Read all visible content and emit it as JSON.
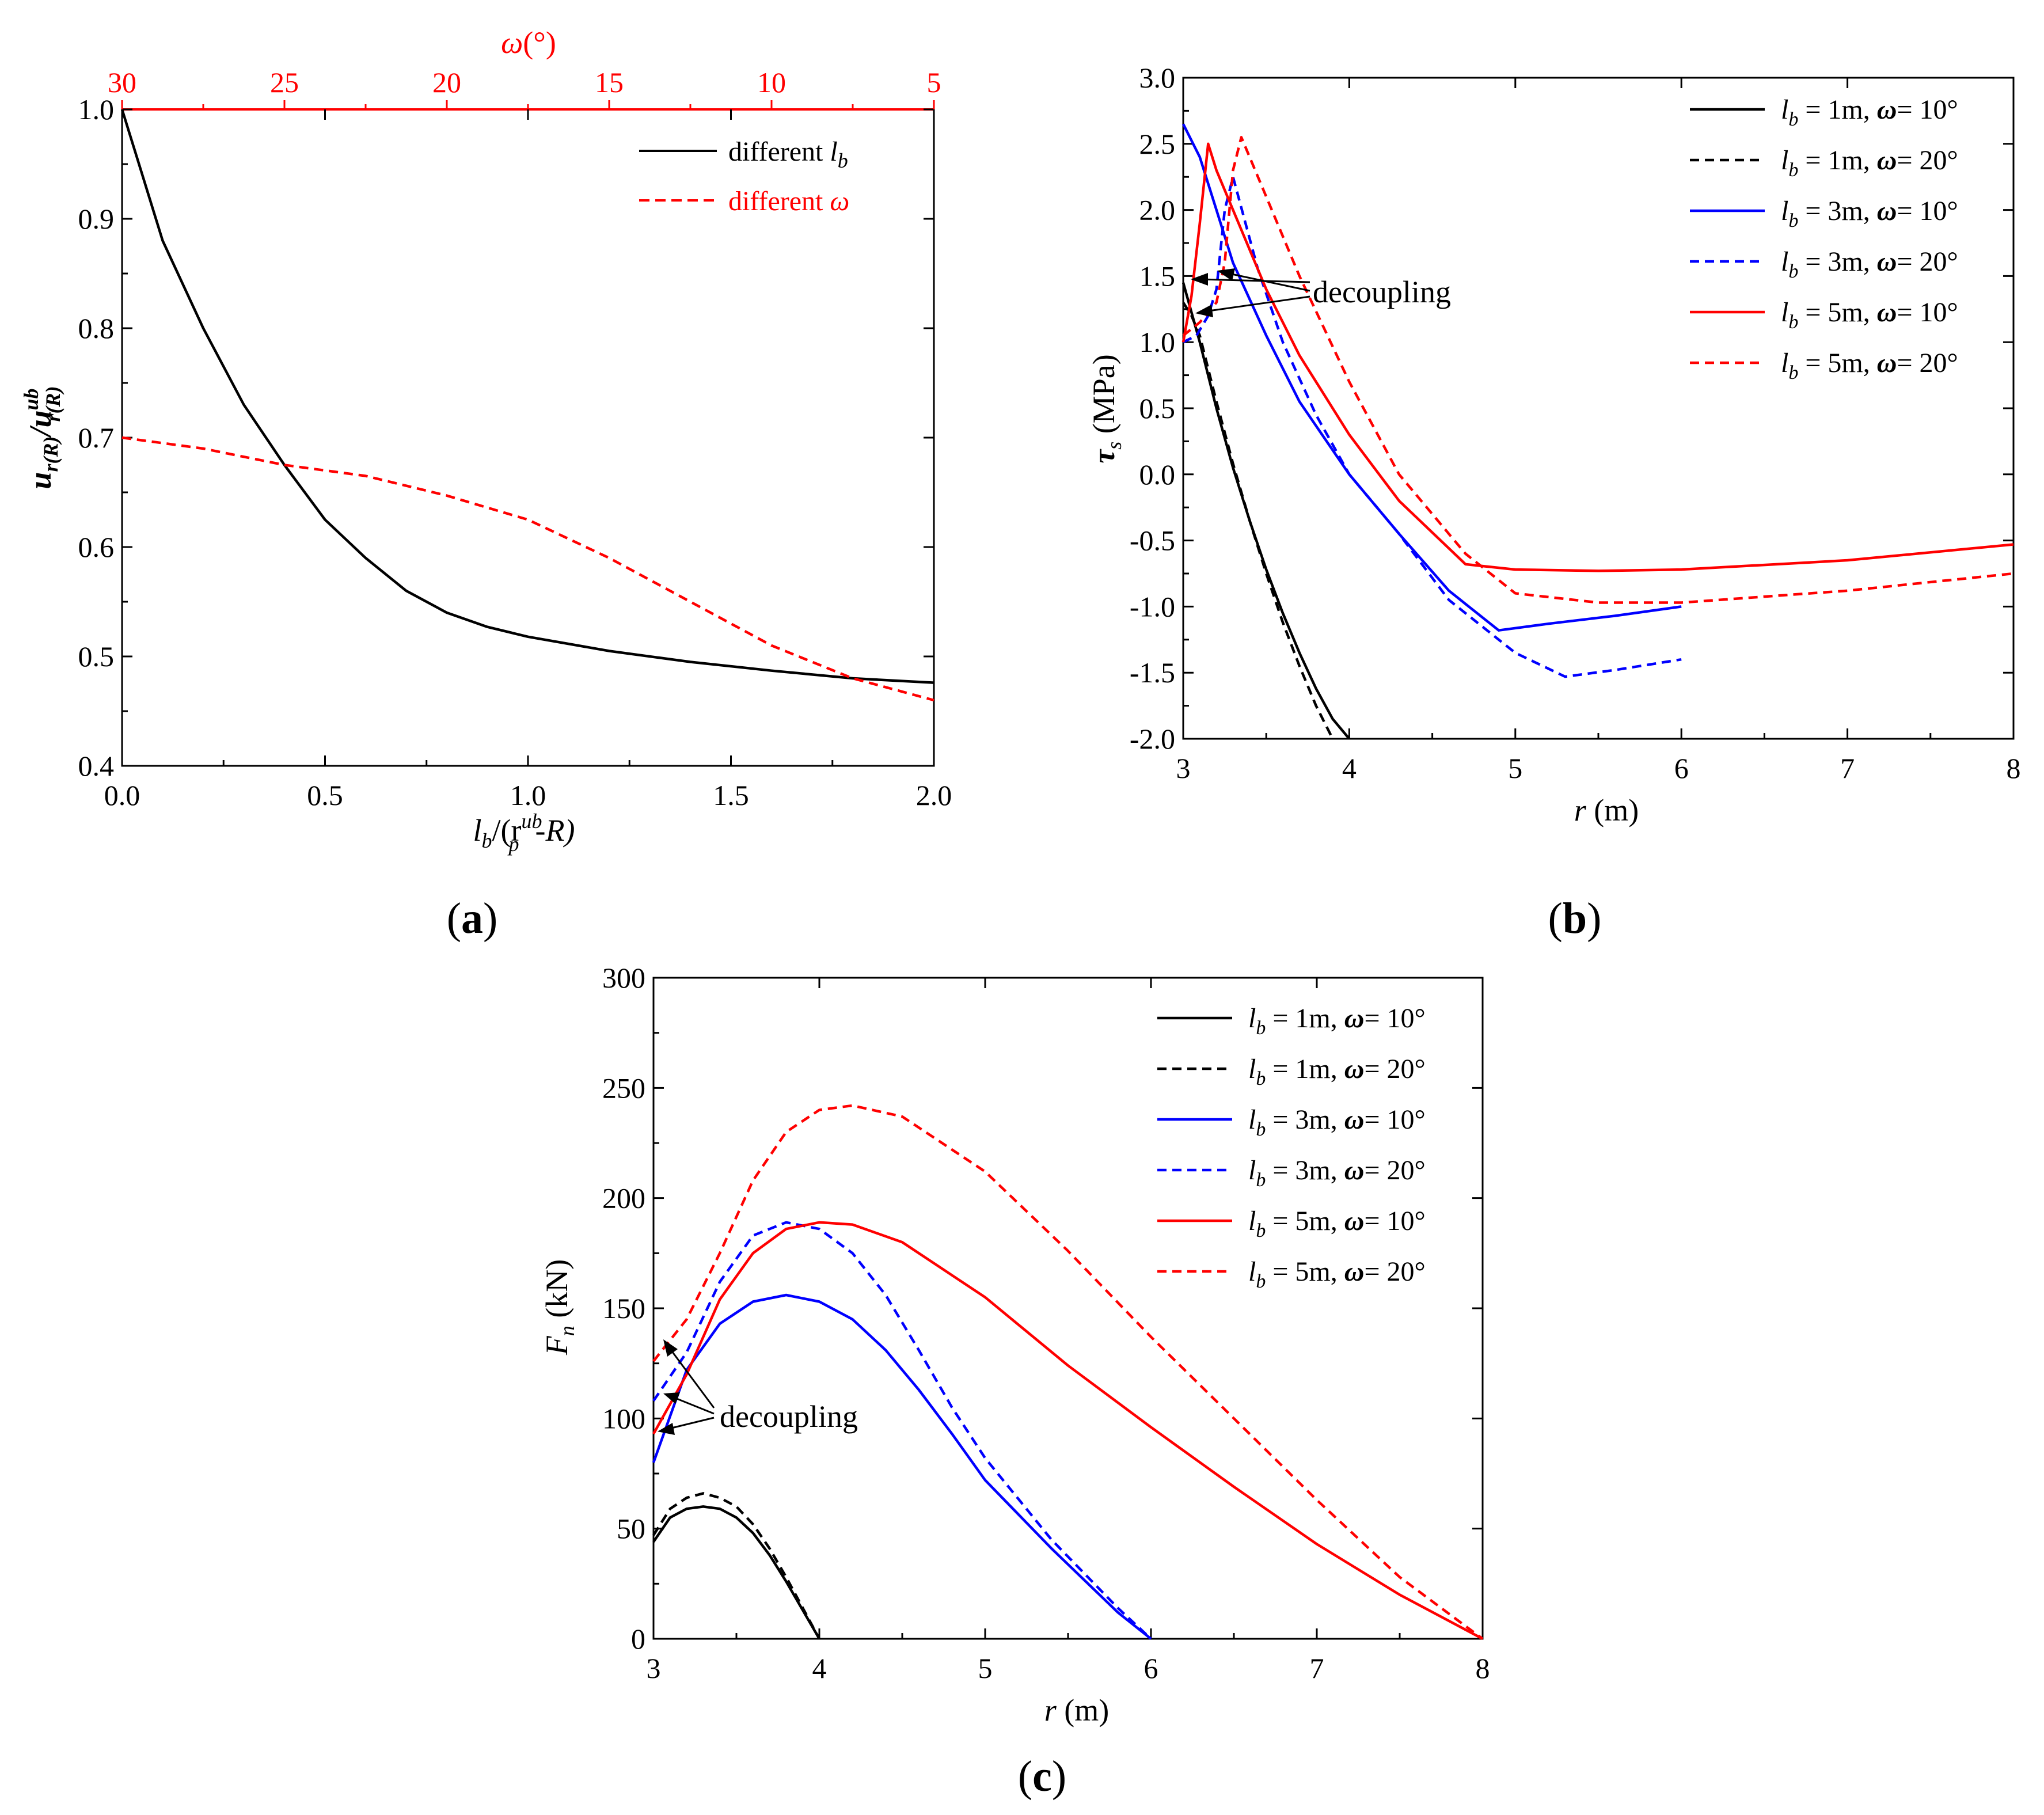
{
  "chart_data": [
    {
      "id": "a",
      "type": "line",
      "caption": "(a)",
      "xlabel": "l_b/(r_p^ub - R)",
      "ylabel": "u_r(R)/u_r(R)^ub",
      "x2label": "ω(°)",
      "xlim": [
        0,
        2.0
      ],
      "ylim": [
        0.4,
        1.0
      ],
      "x2lim": [
        30,
        5
      ],
      "xticks": [
        "0.0",
        "0.5",
        "1.0",
        "1.5",
        "2.0"
      ],
      "yticks": [
        "0.4",
        "0.5",
        "0.6",
        "0.7",
        "0.8",
        "0.9",
        "1.0"
      ],
      "x2ticks": [
        "30",
        "25",
        "20",
        "15",
        "10",
        "5"
      ],
      "colors": {
        "black": "#000000",
        "red": "#ff0000"
      },
      "series": [
        {
          "name": "different l_b",
          "color": "#000000",
          "dash": false,
          "x": [
            0.0,
            0.05,
            0.1,
            0.2,
            0.3,
            0.4,
            0.5,
            0.6,
            0.7,
            0.8,
            0.9,
            1.0,
            1.2,
            1.4,
            1.6,
            1.8,
            2.0
          ],
          "y": [
            1.0,
            0.94,
            0.88,
            0.8,
            0.73,
            0.675,
            0.625,
            0.59,
            0.56,
            0.54,
            0.527,
            0.518,
            0.505,
            0.495,
            0.487,
            0.48,
            0.476
          ]
        },
        {
          "name": "different ω",
          "color": "#ff0000",
          "dash": true,
          "x": [
            0.0,
            0.2,
            0.4,
            0.6,
            0.8,
            1.0,
            1.2,
            1.4,
            1.6,
            1.8,
            2.0
          ],
          "y": [
            0.7,
            0.69,
            0.675,
            0.665,
            0.647,
            0.625,
            0.59,
            0.55,
            0.51,
            0.48,
            0.46
          ]
        }
      ],
      "legend": {
        "entries": [
          "different ",
          "different "
        ],
        "symbols": [
          "l_b",
          "ω"
        ],
        "placement": "top-right"
      }
    },
    {
      "id": "b",
      "type": "line",
      "caption": "(b)",
      "xlabel": "r (m)",
      "ylabel": "τ_s (MPa)",
      "xlim": [
        3,
        8
      ],
      "ylim": [
        -2.0,
        3.0
      ],
      "xticks": [
        "3",
        "4",
        "5",
        "6",
        "7",
        "8"
      ],
      "yticks": [
        "-2.0",
        "-1.5",
        "-1.0",
        "-0.5",
        "0.0",
        "0.5",
        "1.0",
        "1.5",
        "2.0",
        "2.5",
        "3.0"
      ],
      "annotation": "decoupling",
      "series": [
        {
          "name": "l_b = 1m, ω = 10°",
          "color": "#000000",
          "dash": false,
          "x": [
            3.0,
            3.1,
            3.2,
            3.3,
            3.4,
            3.5,
            3.6,
            3.7,
            3.8,
            3.9,
            4.0
          ],
          "y": [
            1.45,
            1.0,
            0.5,
            0.05,
            -0.35,
            -0.72,
            -1.05,
            -1.35,
            -1.62,
            -1.85,
            -2.0
          ]
        },
        {
          "name": "l_b = 1m, ω = 20°",
          "color": "#000000",
          "dash": true,
          "x": [
            3.0,
            3.05,
            3.1,
            3.2,
            3.3,
            3.4,
            3.5,
            3.6,
            3.7,
            3.8,
            3.9
          ],
          "y": [
            1.3,
            1.2,
            1.05,
            0.55,
            0.08,
            -0.35,
            -0.75,
            -1.12,
            -1.45,
            -1.75,
            -2.0
          ]
        },
        {
          "name": "l_b = 3m, ω = 10°",
          "color": "#0000ff",
          "dash": false,
          "x": [
            3.0,
            3.1,
            3.2,
            3.3,
            3.5,
            3.7,
            4.0,
            4.3,
            4.6,
            4.9,
            5.2,
            5.6,
            6.0
          ],
          "y": [
            2.65,
            2.4,
            2.0,
            1.6,
            1.05,
            0.55,
            0.0,
            -0.45,
            -0.88,
            -1.18,
            -1.13,
            -1.07,
            -1.0
          ]
        },
        {
          "name": "l_b = 3m, ω = 20°",
          "color": "#0000ff",
          "dash": true,
          "x": [
            3.0,
            3.08,
            3.15,
            3.2,
            3.25,
            3.3,
            3.45,
            3.6,
            3.8,
            4.0,
            4.3,
            4.6,
            5.0,
            5.3,
            5.6,
            6.0
          ],
          "y": [
            1.0,
            1.05,
            1.2,
            1.4,
            2.0,
            2.25,
            1.55,
            1.0,
            0.45,
            0.0,
            -0.45,
            -0.95,
            -1.35,
            -1.53,
            -1.48,
            -1.4
          ]
        },
        {
          "name": "l_b = 5m, ω = 10°",
          "color": "#ff0000",
          "dash": false,
          "x": [
            3.0,
            3.05,
            3.1,
            3.15,
            3.2,
            3.3,
            3.5,
            3.7,
            4.0,
            4.3,
            4.7,
            5.0,
            5.5,
            6.0,
            7.0,
            8.0
          ],
          "y": [
            1.0,
            1.35,
            1.9,
            2.5,
            2.3,
            2.0,
            1.4,
            0.9,
            0.3,
            -0.2,
            -0.68,
            -0.72,
            -0.73,
            -0.72,
            -0.65,
            -0.53
          ]
        },
        {
          "name": "l_b = 5m, ω = 20°",
          "color": "#ff0000",
          "dash": true,
          "x": [
            3.0,
            3.1,
            3.2,
            3.25,
            3.3,
            3.35,
            3.4,
            3.5,
            3.7,
            4.0,
            4.3,
            4.7,
            5.0,
            5.5,
            6.0,
            7.0,
            8.0
          ],
          "y": [
            1.05,
            1.15,
            1.3,
            1.6,
            2.3,
            2.55,
            2.4,
            2.1,
            1.5,
            0.7,
            0.0,
            -0.6,
            -0.9,
            -0.97,
            -0.97,
            -0.88,
            -0.75
          ]
        }
      ]
    },
    {
      "id": "c",
      "type": "line",
      "caption": "(c)",
      "xlabel": "r (m)",
      "ylabel": "F_n (kN)",
      "xlim": [
        3,
        8
      ],
      "ylim": [
        0,
        300
      ],
      "xticks": [
        "3",
        "4",
        "5",
        "6",
        "7",
        "8"
      ],
      "yticks": [
        "0",
        "50",
        "100",
        "150",
        "200",
        "250",
        "300"
      ],
      "annotation": "decoupling",
      "series": [
        {
          "name": "l_b = 1m, ω = 10°",
          "color": "#000000",
          "dash": false,
          "x": [
            3.0,
            3.1,
            3.2,
            3.3,
            3.4,
            3.5,
            3.6,
            3.7,
            3.8,
            3.9,
            4.0
          ],
          "y": [
            44,
            55,
            59,
            60,
            59,
            55,
            48,
            38,
            26,
            13,
            0
          ]
        },
        {
          "name": "l_b = 1m, ω = 20°",
          "color": "#000000",
          "dash": true,
          "x": [
            3.0,
            3.1,
            3.2,
            3.3,
            3.4,
            3.5,
            3.6,
            3.7,
            3.8,
            3.9,
            4.0
          ],
          "y": [
            47,
            59,
            64,
            66,
            64,
            60,
            52,
            41,
            28,
            14,
            0
          ]
        },
        {
          "name": "l_b = 3m, ω = 10°",
          "color": "#0000ff",
          "dash": false,
          "x": [
            3.0,
            3.2,
            3.4,
            3.6,
            3.8,
            4.0,
            4.2,
            4.4,
            4.6,
            4.8,
            5.0,
            5.4,
            5.8,
            6.0
          ],
          "y": [
            80,
            122,
            143,
            153,
            156,
            153,
            145,
            131,
            113,
            93,
            72,
            41,
            12,
            0
          ]
        },
        {
          "name": "l_b = 3m, ω = 20°",
          "color": "#0000ff",
          "dash": true,
          "x": [
            3.0,
            3.2,
            3.4,
            3.6,
            3.8,
            4.0,
            4.2,
            4.4,
            4.6,
            4.8,
            5.0,
            5.4,
            5.8,
            6.0
          ],
          "y": [
            108,
            130,
            162,
            183,
            189,
            186,
            175,
            156,
            131,
            105,
            82,
            45,
            14,
            0
          ]
        },
        {
          "name": "l_b = 5m, ω = 10°",
          "color": "#ff0000",
          "dash": false,
          "x": [
            3.0,
            3.2,
            3.4,
            3.6,
            3.8,
            4.0,
            4.2,
            4.5,
            5.0,
            5.5,
            6.0,
            6.5,
            7.0,
            7.5,
            8.0
          ],
          "y": [
            93,
            120,
            154,
            175,
            186,
            189,
            188,
            180,
            155,
            124,
            96,
            69,
            43,
            20,
            0
          ]
        },
        {
          "name": "l_b = 5m, ω = 20°",
          "color": "#ff0000",
          "dash": true,
          "x": [
            3.0,
            3.2,
            3.4,
            3.6,
            3.8,
            4.0,
            4.2,
            4.5,
            5.0,
            5.5,
            6.0,
            6.5,
            7.0,
            7.5,
            8.0
          ],
          "y": [
            126,
            145,
            175,
            208,
            230,
            240,
            242,
            237,
            212,
            176,
            137,
            100,
            63,
            28,
            0
          ]
        }
      ]
    }
  ],
  "legend_bc": {
    "lb_symbol": "l",
    "lb_sub": "b",
    "omega_symbol": "ω",
    "rows": [
      {
        "lb": " = 1m, ",
        "omega": "= 10°"
      },
      {
        "lb": " = 1m, ",
        "omega": "= 20°"
      },
      {
        "lb": " = 3m, ",
        "omega": "= 10°"
      },
      {
        "lb": " = 3m, ",
        "omega": "= 20°"
      },
      {
        "lb": " = 5m, ",
        "omega": "= 10°"
      },
      {
        "lb": " = 5m, ",
        "omega": "= 20°"
      }
    ]
  },
  "labels": {
    "a_x2label_omega": "ω",
    "a_x2label_rest": "(°)",
    "a_ylabel_u": "u",
    "a_ylabel_sub1": "r(R)",
    "a_ylabel_slash": "/u",
    "a_ylabel_sup": "ub",
    "a_ylabel_sub2": "r(R)",
    "a_xlabel_l": "l",
    "a_xlabel_sub": "b",
    "a_xlabel_mid": "/(r",
    "a_xlabel_sup": "ub",
    "a_xlabel_psub": "p",
    "a_xlabel_end": "-R)",
    "a_leg1_text": "different ",
    "a_leg1_sym": "l",
    "a_leg1_sub": "b",
    "a_leg2_text": "different ",
    "a_leg2_sym": "ω",
    "r_label_r": "r",
    "r_label_unit": " (m)",
    "b_ylabel_tau": "τ",
    "b_ylabel_sub": "s",
    "b_ylabel_unit": " (MPa)",
    "c_ylabel_F": "F",
    "c_ylabel_sub": "n",
    "c_ylabel_unit": " (kN)",
    "decoupling": "decoupling",
    "cap_a_open": "(",
    "cap_a": "a",
    "cap_a_close": ")",
    "cap_b_open": "(",
    "cap_b": "b",
    "cap_b_close": ")",
    "cap_c_open": "(",
    "cap_c": "c",
    "cap_c_close": ")"
  }
}
